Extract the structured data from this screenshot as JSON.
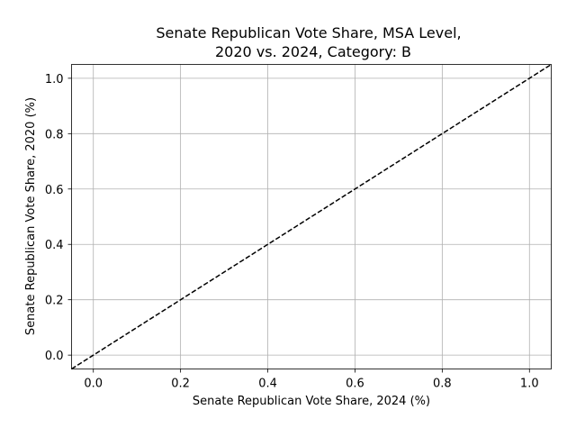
{
  "chart_data": {
    "type": "line",
    "title_line1": "Senate Republican Vote Share, MSA Level,",
    "title_line2": "2020 vs. 2024, Category: B",
    "xlabel": "Senate Republican Vote Share, 2024 (%)",
    "ylabel": "Senate Republican Vote Share, 2020 (%)",
    "xlim": [
      -0.05,
      1.05
    ],
    "ylim": [
      -0.05,
      1.05
    ],
    "xticks": [
      0.0,
      0.2,
      0.4,
      0.6,
      0.8,
      1.0
    ],
    "yticks": [
      0.0,
      0.2,
      0.4,
      0.6,
      0.8,
      1.0
    ],
    "grid": true,
    "series": [
      {
        "style": "dashed",
        "color": "#000000",
        "x": [
          -0.05,
          1.05
        ],
        "y": [
          -0.05,
          1.05
        ]
      }
    ]
  }
}
